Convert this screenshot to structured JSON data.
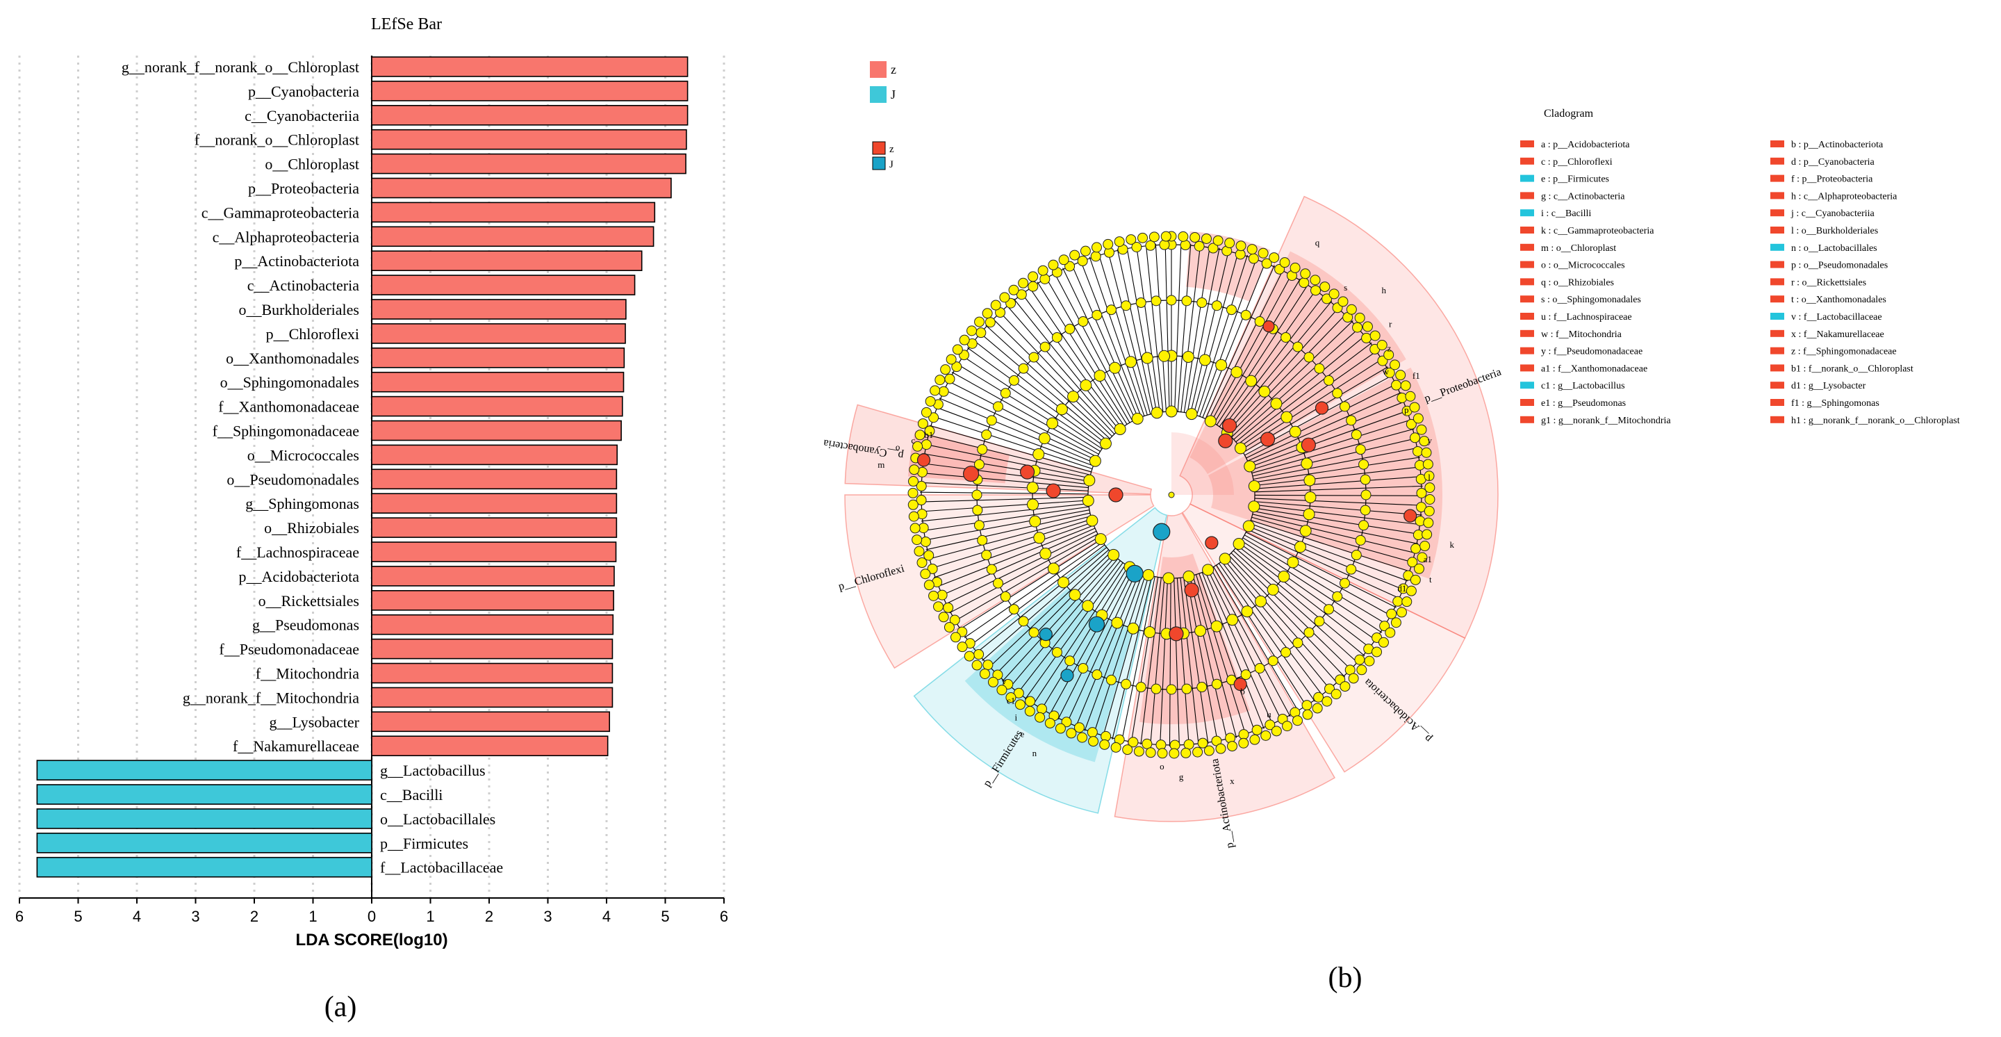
{
  "chart_data": [
    {
      "type": "bar",
      "orientation": "horizontal",
      "title": "LEfSe Bar",
      "xlabel": "LDA SCORE(log10)",
      "xlim": [
        -6,
        6
      ],
      "xticks": [
        "6",
        "5",
        "4",
        "3",
        "2",
        "1",
        "0",
        "1",
        "2",
        "3",
        "4",
        "5",
        "6"
      ],
      "grid": "vertical-dotted",
      "panel_label": "(a)",
      "group_colors": {
        "z": "#F8766D",
        "J": "#3EC8D9"
      },
      "bars": [
        {
          "label": "g__norank_f__norank_o__Chloroplast",
          "value": 5.38,
          "group": "z"
        },
        {
          "label": "p__Cyanobacteria",
          "value": 5.38,
          "group": "z"
        },
        {
          "label": "c__Cyanobacteriia",
          "value": 5.38,
          "group": "z"
        },
        {
          "label": "f__norank_o__Chloroplast",
          "value": 5.36,
          "group": "z"
        },
        {
          "label": "o__Chloroplast",
          "value": 5.35,
          "group": "z"
        },
        {
          "label": "p__Proteobacteria",
          "value": 5.1,
          "group": "z"
        },
        {
          "label": "c__Gammaproteobacteria",
          "value": 4.82,
          "group": "z"
        },
        {
          "label": "c__Alphaproteobacteria",
          "value": 4.8,
          "group": "z"
        },
        {
          "label": "p__Actinobacteriota",
          "value": 4.6,
          "group": "z"
        },
        {
          "label": "c__Actinobacteria",
          "value": 4.48,
          "group": "z"
        },
        {
          "label": "o__Burkholderiales",
          "value": 4.33,
          "group": "z"
        },
        {
          "label": "p__Chloroflexi",
          "value": 4.32,
          "group": "z"
        },
        {
          "label": "o__Xanthomonadales",
          "value": 4.3,
          "group": "z"
        },
        {
          "label": "o__Sphingomonadales",
          "value": 4.29,
          "group": "z"
        },
        {
          "label": "f__Xanthomonadaceae",
          "value": 4.27,
          "group": "z"
        },
        {
          "label": "f__Sphingomonadaceae",
          "value": 4.25,
          "group": "z"
        },
        {
          "label": "o__Micrococcales",
          "value": 4.18,
          "group": "z"
        },
        {
          "label": "o__Pseudomonadales",
          "value": 4.17,
          "group": "z"
        },
        {
          "label": "g__Sphingomonas",
          "value": 4.17,
          "group": "z"
        },
        {
          "label": "o__Rhizobiales",
          "value": 4.17,
          "group": "z"
        },
        {
          "label": "f__Lachnospiraceae",
          "value": 4.16,
          "group": "z"
        },
        {
          "label": "p__Acidobacteriota",
          "value": 4.13,
          "group": "z"
        },
        {
          "label": "o__Rickettsiales",
          "value": 4.12,
          "group": "z"
        },
        {
          "label": "g__Pseudomonas",
          "value": 4.11,
          "group": "z"
        },
        {
          "label": "f__Pseudomonadaceae",
          "value": 4.1,
          "group": "z"
        },
        {
          "label": "f__Mitochondria",
          "value": 4.1,
          "group": "z"
        },
        {
          "label": "g__norank_f__Mitochondria",
          "value": 4.1,
          "group": "z"
        },
        {
          "label": "g__Lysobacter",
          "value": 4.05,
          "group": "z"
        },
        {
          "label": "f__Nakamurellaceae",
          "value": 4.02,
          "group": "z"
        },
        {
          "label": "g__Lactobacillus",
          "value": 5.7,
          "group": "J"
        },
        {
          "label": "c__Bacilli",
          "value": 5.7,
          "group": "J"
        },
        {
          "label": "o__Lactobacillales",
          "value": 5.7,
          "group": "J"
        },
        {
          "label": "p__Firmicutes",
          "value": 5.7,
          "group": "J"
        },
        {
          "label": "f__Lactobacillaceae",
          "value": 5.7,
          "group": "J"
        }
      ]
    },
    {
      "type": "cladogram",
      "title": "Cladogram",
      "panel_label": "(b)",
      "group_legend": [
        {
          "name": "z",
          "color": "#F8766D"
        },
        {
          "name": "J",
          "color": "#3EC8D9"
        }
      ],
      "node_legend": [
        {
          "name": "z",
          "color": "#F0472C"
        },
        {
          "name": "J",
          "color": "#1AA3C8"
        }
      ],
      "clade_labels": [
        "p__Proteobacteria",
        "p__Cyanobacteria",
        "p__Chloroflexi",
        "p__Firmicutes",
        "p__Actinobacteriota",
        "p__Acidobacteriota"
      ],
      "sector_letters": [
        "q",
        "s",
        "h",
        "r",
        "z",
        "w",
        "f1",
        "p",
        "y",
        "l",
        "k",
        "a1",
        "t",
        "d1",
        "m",
        "o",
        "c",
        "b1",
        "n",
        "e",
        "i",
        "c1",
        "v",
        "x",
        "g",
        "o",
        "b",
        "u"
      ],
      "legend": [
        {
          "text": "a : p__Acidobacteriota",
          "group": "z"
        },
        {
          "text": "b : p__Actinobacteriota",
          "group": "z"
        },
        {
          "text": "c : p__Chloroflexi",
          "group": "z"
        },
        {
          "text": "d : p__Cyanobacteria",
          "group": "z"
        },
        {
          "text": "e : p__Firmicutes",
          "group": "J"
        },
        {
          "text": "f : p__Proteobacteria",
          "group": "z"
        },
        {
          "text": "g : c__Actinobacteria",
          "group": "z"
        },
        {
          "text": "h : c__Alphaproteobacteria",
          "group": "z"
        },
        {
          "text": "i : c__Bacilli",
          "group": "J"
        },
        {
          "text": "j : c__Cyanobacteriia",
          "group": "z"
        },
        {
          "text": "k : c__Gammaproteobacteria",
          "group": "z"
        },
        {
          "text": "l : o__Burkholderiales",
          "group": "z"
        },
        {
          "text": "m : o__Chloroplast",
          "group": "z"
        },
        {
          "text": "n : o__Lactobacillales",
          "group": "J"
        },
        {
          "text": "o : o__Micrococcales",
          "group": "z"
        },
        {
          "text": "p : o__Pseudomonadales",
          "group": "z"
        },
        {
          "text": "q : o__Rhizobiales",
          "group": "z"
        },
        {
          "text": "r : o__Rickettsiales",
          "group": "z"
        },
        {
          "text": "s : o__Sphingomonadales",
          "group": "z"
        },
        {
          "text": "t : o__Xanthomonadales",
          "group": "z"
        },
        {
          "text": "u : f__Lachnospiraceae",
          "group": "z"
        },
        {
          "text": "v : f__Lactobacillaceae",
          "group": "J"
        },
        {
          "text": "w : f__Mitochondria",
          "group": "z"
        },
        {
          "text": "x : f__Nakamurellaceae",
          "group": "z"
        },
        {
          "text": "y : f__Pseudomonadaceae",
          "group": "z"
        },
        {
          "text": "z : f__Sphingomonadaceae",
          "group": "z"
        },
        {
          "text": "a1 : f__Xanthomonadaceae",
          "group": "z"
        },
        {
          "text": "b1 : f__norank_o__Chloroplast",
          "group": "z"
        },
        {
          "text": "c1 : g__Lactobacillus",
          "group": "J"
        },
        {
          "text": "d1 : g__Lysobacter",
          "group": "z"
        },
        {
          "text": "e1 : g__Pseudomonas",
          "group": "z"
        },
        {
          "text": "f1 : g__Sphingomonas",
          "group": "z"
        },
        {
          "text": "g1 : g__norank_f__Mitochondria",
          "group": "z"
        },
        {
          "text": "h1 : g__norank_f__norank_o__Chloroplast",
          "group": "z"
        }
      ]
    }
  ]
}
